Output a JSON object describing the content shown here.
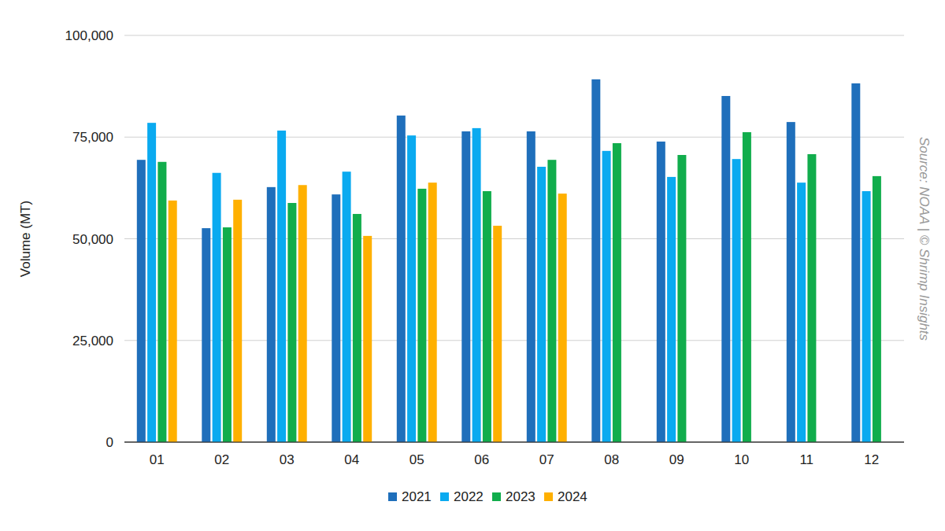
{
  "chart_data": {
    "type": "bar",
    "y_label": "Volume (MT)",
    "source": "Source: NOAA | © Shrimp Insights",
    "categories": [
      "01",
      "02",
      "03",
      "04",
      "05",
      "06",
      "07",
      "08",
      "09",
      "10",
      "11",
      "12"
    ],
    "series": [
      {
        "name": "2021",
        "color": "#1f6fbb",
        "values": [
          69400,
          52600,
          62700,
          60900,
          80300,
          76400,
          76400,
          89200,
          73900,
          85100,
          78700,
          88200
        ]
      },
      {
        "name": "2022",
        "color": "#0aaaf0",
        "values": [
          78500,
          66200,
          76600,
          66500,
          75400,
          77200,
          67700,
          71600,
          65200,
          69600,
          63800,
          61700
        ]
      },
      {
        "name": "2023",
        "color": "#11ad4c",
        "values": [
          68900,
          52800,
          58800,
          56100,
          62300,
          61700,
          69400,
          73500,
          70600,
          76200,
          70800,
          65400
        ]
      },
      {
        "name": "2024",
        "color": "#ffb000",
        "values": [
          59400,
          59600,
          63200,
          50700,
          63800,
          53200,
          61100,
          null,
          null,
          null,
          null,
          null
        ]
      }
    ],
    "ylim": [
      0,
      100000
    ],
    "yticks": [
      0,
      {
        "value": 25000,
        "label": "25,000"
      },
      {
        "value": 50000,
        "label": "50,000"
      },
      {
        "value": 75000,
        "label": "75,000"
      },
      {
        "value": 100000,
        "label": "100,000"
      }
    ],
    "grid": true,
    "legend": "bottom"
  }
}
